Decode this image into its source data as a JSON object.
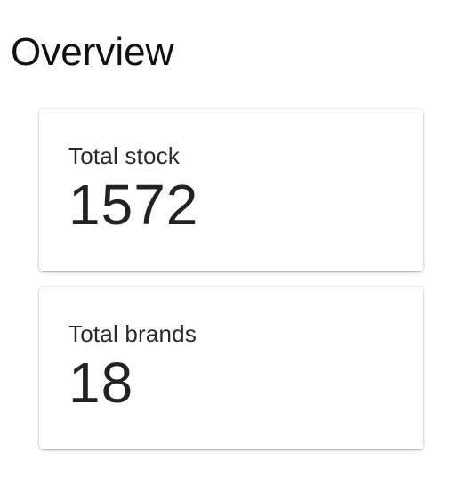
{
  "page": {
    "title": "Overview"
  },
  "cards": [
    {
      "label": "Total stock",
      "value": "1572"
    },
    {
      "label": "Total brands",
      "value": "18"
    }
  ]
}
